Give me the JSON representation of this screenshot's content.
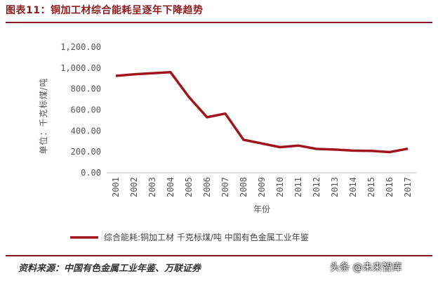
{
  "figure": {
    "title": "图表11：铜加工材综合能耗呈逐年下降趋势",
    "source": "资料来源：中国有色金属工业年鉴、万联证券",
    "watermark": "头条 @未来智库"
  },
  "chart_data": {
    "type": "line",
    "title": "",
    "xlabel": "年份",
    "ylabel": "单位：千克标煤/吨",
    "x": [
      "2001",
      "2002",
      "2003",
      "2004",
      "2005",
      "2006",
      "2007",
      "2008",
      "2009",
      "2010",
      "2011",
      "2012",
      "2013",
      "2014",
      "2015",
      "2016",
      "2017"
    ],
    "ylim": [
      0,
      1200
    ],
    "yticks": [
      "0.00",
      "200.00",
      "400.00",
      "600.00",
      "800.00",
      "1,000.00",
      "1,200.00"
    ],
    "ytick_values": [
      0,
      200,
      400,
      600,
      800,
      1000,
      1200
    ],
    "series": [
      {
        "name": "综合能耗:铜加工材  千克标煤/吨  中国有色金属工业年鉴",
        "color": "#a0151c",
        "values": [
          925,
          940,
          950,
          960,
          725,
          530,
          565,
          315,
          280,
          245,
          260,
          228,
          222,
          212,
          210,
          198,
          230
        ]
      }
    ],
    "grid": false,
    "legend_position": "bottom"
  }
}
